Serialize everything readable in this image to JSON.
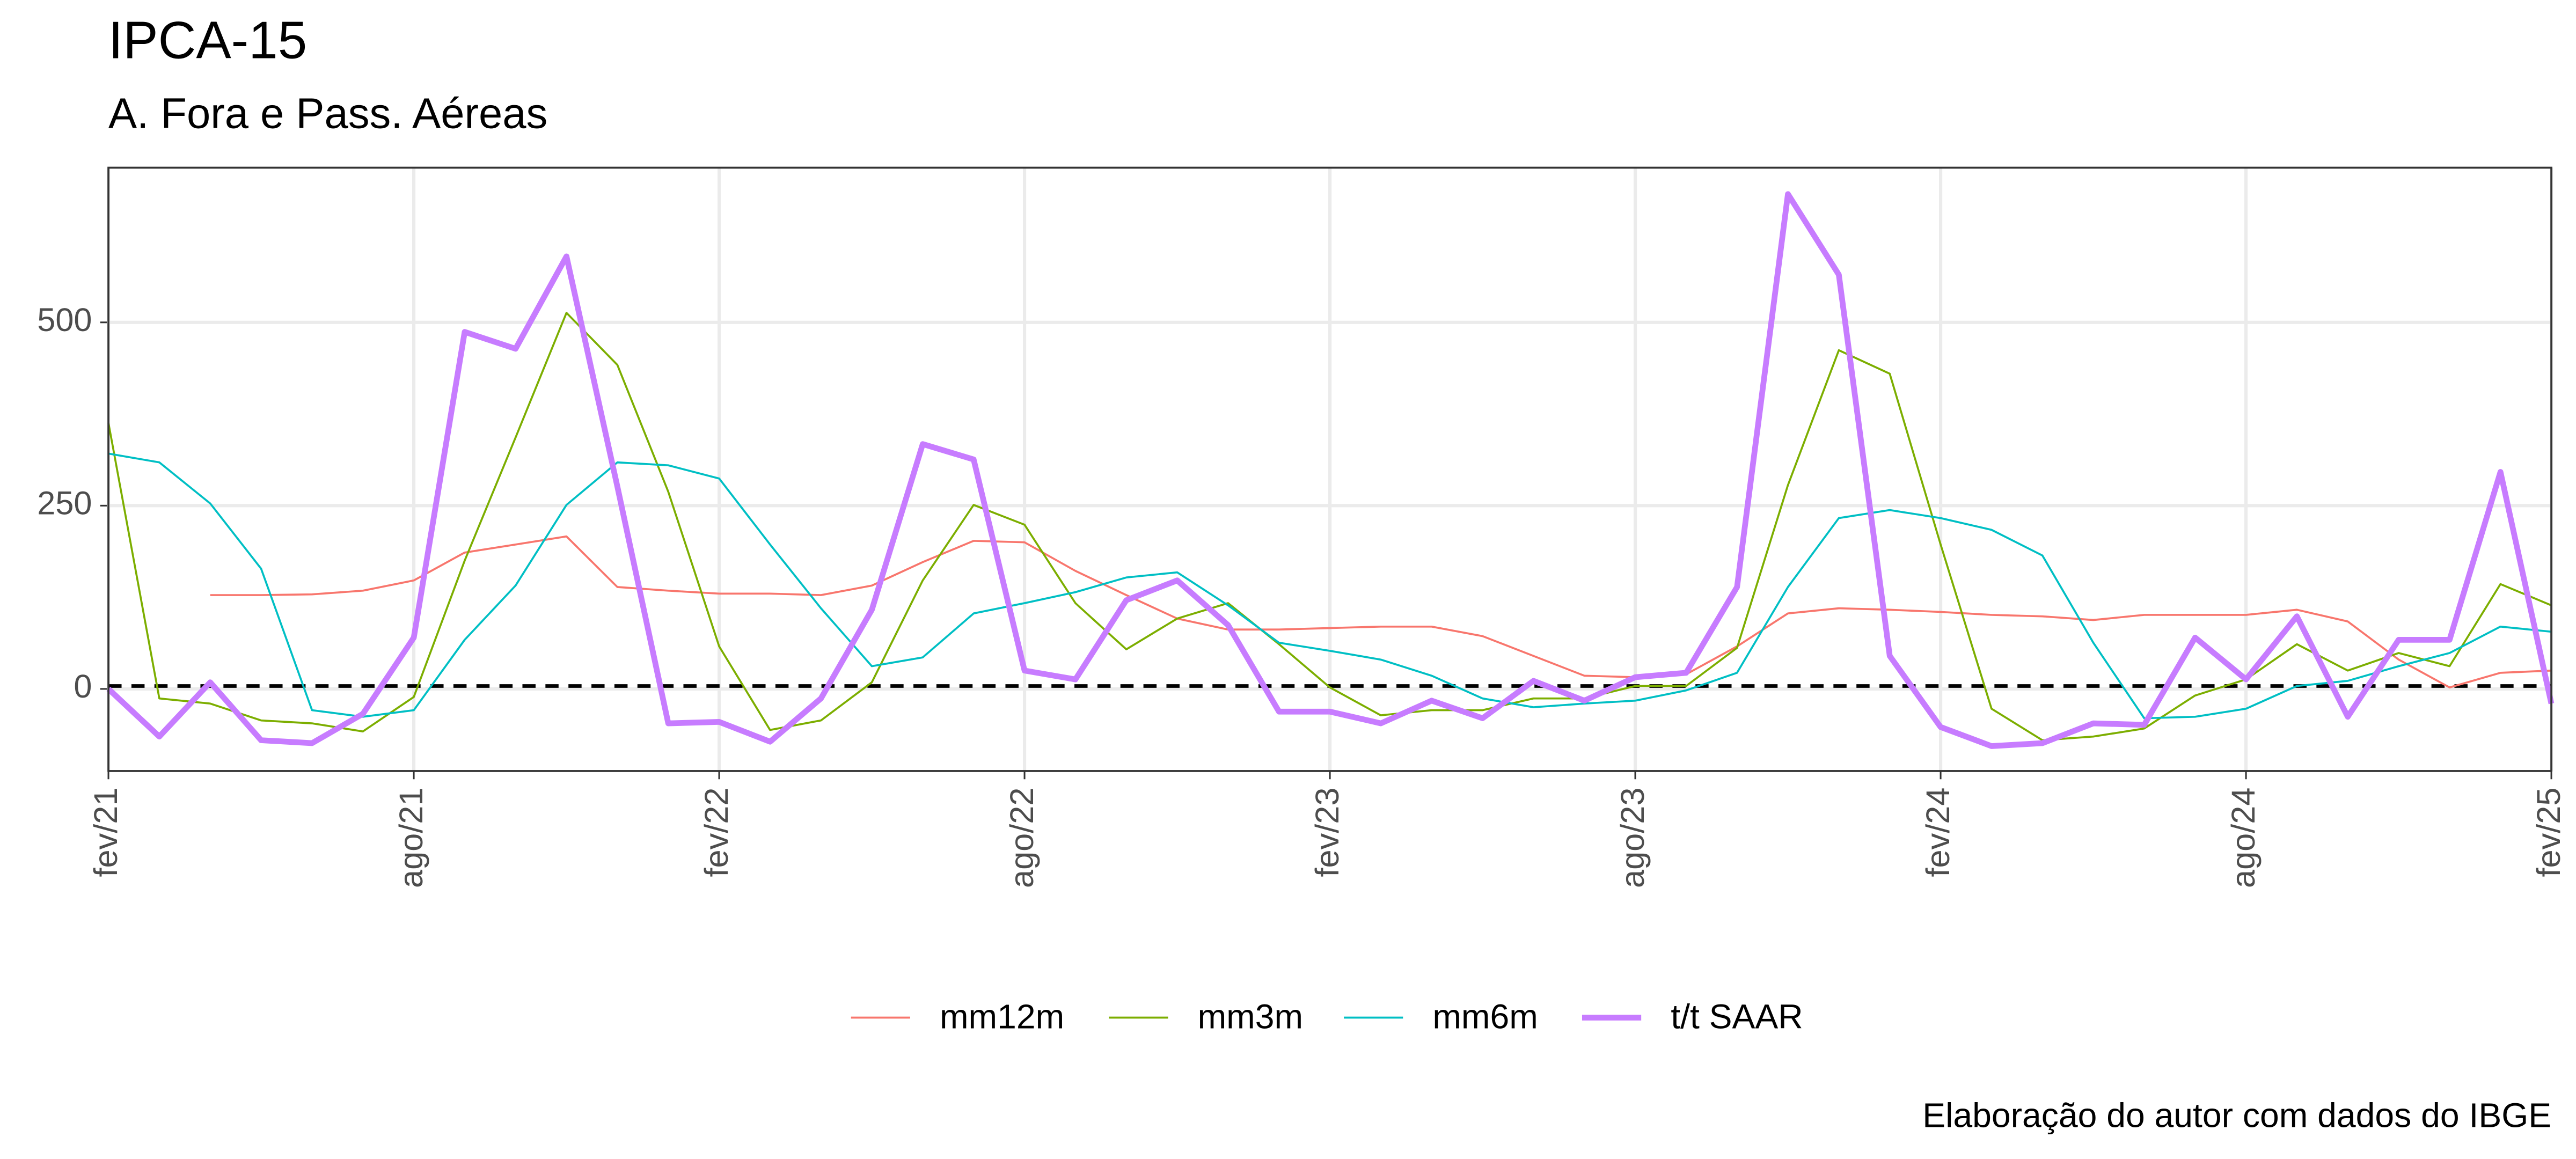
{
  "chart_data": {
    "type": "line",
    "title": "IPCA-15",
    "subtitle": "A. Fora e Pass. Aéreas",
    "caption": "Elaboração do autor com dados do IBGE",
    "x": [
      "fev/21",
      "mar/21",
      "abr/21",
      "mai/21",
      "jun/21",
      "jul/21",
      "ago/21",
      "set/21",
      "out/21",
      "nov/21",
      "dez/21",
      "jan/22",
      "fev/22",
      "mar/22",
      "abr/22",
      "mai/22",
      "jun/22",
      "jul/22",
      "ago/22",
      "set/22",
      "out/22",
      "nov/22",
      "dez/22",
      "jan/23",
      "fev/23",
      "mar/23",
      "abr/23",
      "mai/23",
      "jun/23",
      "jul/23",
      "ago/23",
      "set/23",
      "out/23",
      "nov/23",
      "dez/23",
      "jan/24",
      "fev/24",
      "mar/24",
      "abr/24",
      "mai/24",
      "jun/24",
      "jul/24",
      "ago/24",
      "set/24",
      "out/24",
      "nov/24",
      "dez/24",
      "jan/25",
      "fev/25"
    ],
    "xticks": [
      "fev/21",
      "ago/21",
      "fev/22",
      "ago/22",
      "fev/23",
      "ago/23",
      "fev/24",
      "ago/24",
      "fev/25"
    ],
    "ylim": [
      -112,
      711
    ],
    "yticks": [
      0,
      250,
      500
    ],
    "grid": true,
    "hline": 4,
    "legend": "bottom",
    "series": [
      {
        "name": "mm12m",
        "color": "#F8766D",
        "values": [
          null,
          null,
          128,
          128,
          129,
          134,
          148,
          186,
          197,
          208,
          139,
          134,
          130,
          130,
          128,
          141,
          173,
          202,
          200,
          161,
          128,
          96,
          81,
          81,
          83,
          85,
          85,
          72,
          45,
          18,
          16,
          20,
          58,
          103,
          110,
          108,
          105,
          101,
          99,
          94,
          101,
          101,
          101,
          108,
          92,
          40,
          2,
          22,
          25
        ]
      },
      {
        "name": "mm3m",
        "color": "#7CAE00",
        "values": [
          363,
          -13,
          -20,
          -43,
          -47,
          -58,
          -11,
          175,
          343,
          513,
          442,
          269,
          58,
          -56,
          -43,
          9,
          148,
          251,
          224,
          117,
          54,
          96,
          117,
          61,
          2,
          -36,
          -29,
          -29,
          -13,
          -13,
          4,
          4,
          56,
          278,
          462,
          430,
          197,
          -27,
          -70,
          -65,
          -54,
          -9,
          13,
          61,
          25,
          49,
          31,
          143,
          114
        ]
      },
      {
        "name": "mm6m",
        "color": "#00BFC4",
        "values": [
          321,
          309,
          253,
          164,
          -29,
          -38,
          -29,
          67,
          141,
          251,
          309,
          305,
          287,
          197,
          110,
          31,
          43,
          103,
          117,
          132,
          152,
          159,
          114,
          63,
          52,
          40,
          18,
          -13,
          -25,
          -20,
          -16,
          -2,
          22,
          139,
          233,
          244,
          233,
          217,
          182,
          63,
          -40,
          -38,
          -27,
          4,
          11,
          31,
          49,
          85,
          78
        ]
      },
      {
        "name": "t/t SAAR",
        "color": "#C77CFF",
        "values": [
          0,
          -65,
          9,
          -70,
          -74,
          -34,
          70,
          487,
          464,
          590,
          276,
          -47,
          -45,
          -72,
          -13,
          108,
          334,
          313,
          25,
          13,
          121,
          148,
          87,
          -31,
          -31,
          -47,
          -16,
          -40,
          11,
          -16,
          16,
          22,
          139,
          675,
          565,
          45,
          -52,
          -78,
          -74,
          -47,
          -49,
          70,
          13,
          99,
          -38,
          67,
          67,
          296,
          -20
        ]
      }
    ]
  }
}
